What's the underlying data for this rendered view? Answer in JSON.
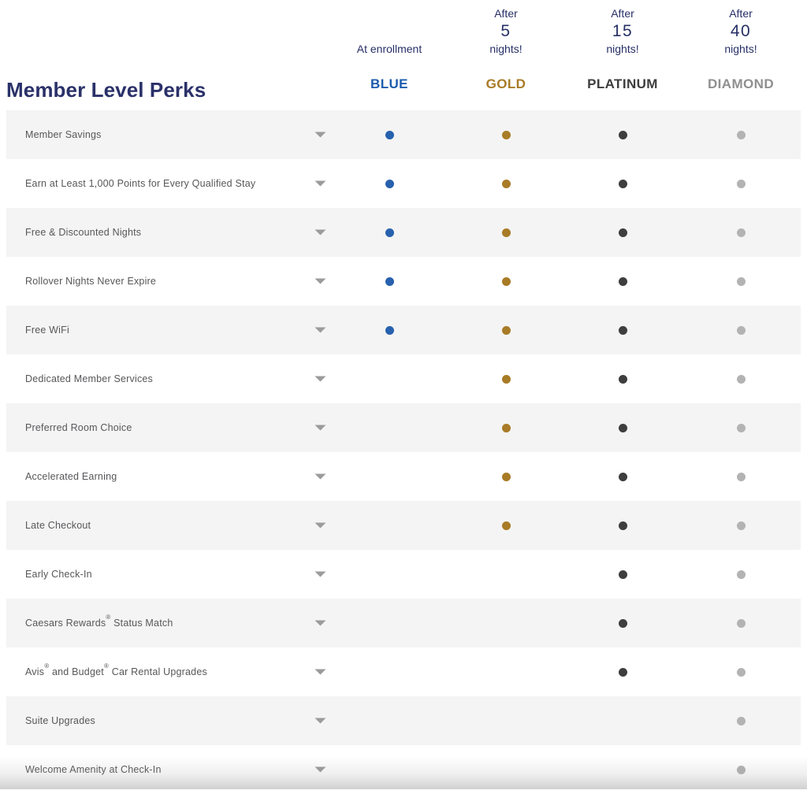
{
  "page": {
    "title": "Member Level Perks"
  },
  "colors": {
    "navy_heading": "#2a3169",
    "qualifier_text": "#272f66",
    "perk_text": "#57575a",
    "row_stripe": "#f4f4f4",
    "chevron": "#9b9b9b"
  },
  "columns": [
    {
      "id": "blue",
      "name": "BLUE",
      "qualifier": {
        "top": "",
        "big": "",
        "bottom": "At enrollment"
      },
      "name_color": "#1c5cad",
      "dot_color": "#2761ae"
    },
    {
      "id": "gold",
      "name": "GOLD",
      "qualifier": {
        "top": "After",
        "big": "5",
        "bottom": "nights!"
      },
      "name_color": "#a87b26",
      "dot_color": "#a87b26"
    },
    {
      "id": "platinum",
      "name": "PLATINUM",
      "qualifier": {
        "top": "After",
        "big": "15",
        "bottom": "nights!"
      },
      "name_color": "#3d3d3d",
      "dot_color": "#3e3e3e"
    },
    {
      "id": "diamond",
      "name": "DIAMOND",
      "qualifier": {
        "top": "After",
        "big": "40",
        "bottom": "nights!"
      },
      "name_color": "#8f8f8f",
      "dot_color": "#b3b3b3"
    }
  ],
  "perks": [
    {
      "label": "Member Savings",
      "levels": [
        true,
        true,
        true,
        true
      ]
    },
    {
      "label": "Earn at Least 1,000 Points for Every Qualified Stay",
      "levels": [
        true,
        true,
        true,
        true
      ]
    },
    {
      "label": "Free & Discounted Nights",
      "levels": [
        true,
        true,
        true,
        true
      ]
    },
    {
      "label": "Rollover Nights Never Expire",
      "levels": [
        true,
        true,
        true,
        true
      ]
    },
    {
      "label": "Free WiFi",
      "levels": [
        true,
        true,
        true,
        true
      ]
    },
    {
      "label": "Dedicated Member Services",
      "levels": [
        false,
        true,
        true,
        true
      ]
    },
    {
      "label": "Preferred Room Choice",
      "levels": [
        false,
        true,
        true,
        true
      ]
    },
    {
      "label": "Accelerated Earning",
      "levels": [
        false,
        true,
        true,
        true
      ]
    },
    {
      "label": "Late Checkout",
      "levels": [
        false,
        true,
        true,
        true
      ]
    },
    {
      "label": "Early Check-In",
      "levels": [
        false,
        false,
        true,
        true
      ]
    },
    {
      "label": "Caesars Rewards® Status Match",
      "levels": [
        false,
        false,
        true,
        true
      ]
    },
    {
      "label": "Avis® and Budget® Car Rental Upgrades",
      "levels": [
        false,
        false,
        true,
        true
      ]
    },
    {
      "label": "Suite Upgrades",
      "levels": [
        false,
        false,
        false,
        true
      ]
    },
    {
      "label": "Welcome Amenity at Check-In",
      "levels": [
        false,
        false,
        false,
        true
      ]
    }
  ]
}
